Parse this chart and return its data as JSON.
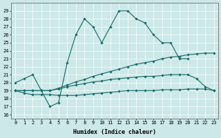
{
  "xlabel": "Humidex (Indice chaleur)",
  "bg_color": "#cce8e8",
  "line_color": "#1a6e6a",
  "xlim": [
    -0.5,
    23.5
  ],
  "ylim": [
    15.5,
    30.0
  ],
  "xticks": [
    0,
    1,
    2,
    3,
    4,
    5,
    6,
    7,
    8,
    9,
    10,
    11,
    12,
    13,
    14,
    15,
    16,
    17,
    18,
    19,
    20,
    21,
    22,
    23
  ],
  "yticks": [
    16,
    17,
    18,
    19,
    20,
    21,
    22,
    23,
    24,
    25,
    26,
    27,
    28,
    29
  ],
  "series": [
    {
      "x": [
        0,
        1,
        2,
        3,
        4,
        5,
        6,
        7,
        8,
        9,
        10,
        11,
        12,
        13,
        14,
        15,
        16,
        17,
        18,
        19,
        20,
        21,
        22,
        23
      ],
      "y": [
        20,
        20.5,
        21,
        19,
        17,
        17.5,
        22.5,
        26,
        28,
        27,
        25,
        27,
        29,
        29,
        28,
        27.5,
        26,
        25,
        25,
        23,
        23,
        null,
        null,
        null
      ]
    },
    {
      "x": [
        0,
        1,
        2,
        3,
        4,
        5,
        6,
        7,
        8,
        9,
        10,
        11,
        12,
        13,
        14,
        15,
        16,
        17,
        18,
        19,
        20,
        21,
        22,
        23
      ],
      "y": [
        19,
        19,
        19,
        19,
        19,
        19.3,
        19.7,
        20.1,
        20.4,
        20.8,
        21.1,
        21.4,
        21.7,
        22.0,
        22.3,
        22.5,
        22.7,
        23.0,
        23.2,
        23.3,
        23.5,
        23.6,
        23.7,
        23.7
      ]
    },
    {
      "x": [
        0,
        1,
        2,
        3,
        4,
        5,
        6,
        7,
        8,
        9,
        10,
        11,
        12,
        13,
        14,
        15,
        16,
        17,
        18,
        19,
        20,
        21,
        22,
        23
      ],
      "y": [
        19,
        19,
        19,
        19,
        19,
        19.2,
        19.5,
        19.7,
        19.9,
        20.1,
        20.2,
        20.4,
        20.5,
        20.6,
        20.7,
        20.8,
        20.8,
        20.9,
        21.0,
        21.0,
        21.0,
        20.5,
        19.5,
        19
      ]
    },
    {
      "x": [
        0,
        1,
        2,
        3,
        4,
        5,
        6,
        7,
        8,
        9,
        10,
        11,
        12,
        13,
        14,
        15,
        16,
        17,
        18,
        19,
        20,
        21,
        22,
        23
      ],
      "y": [
        19,
        18.7,
        18.5,
        18.5,
        18.5,
        18.4,
        18.4,
        18.4,
        18.5,
        18.6,
        18.7,
        18.8,
        18.9,
        19.0,
        19.0,
        19.0,
        19.0,
        19.1,
        19.1,
        19.1,
        19.2,
        19.2,
        19.2,
        19
      ]
    }
  ]
}
